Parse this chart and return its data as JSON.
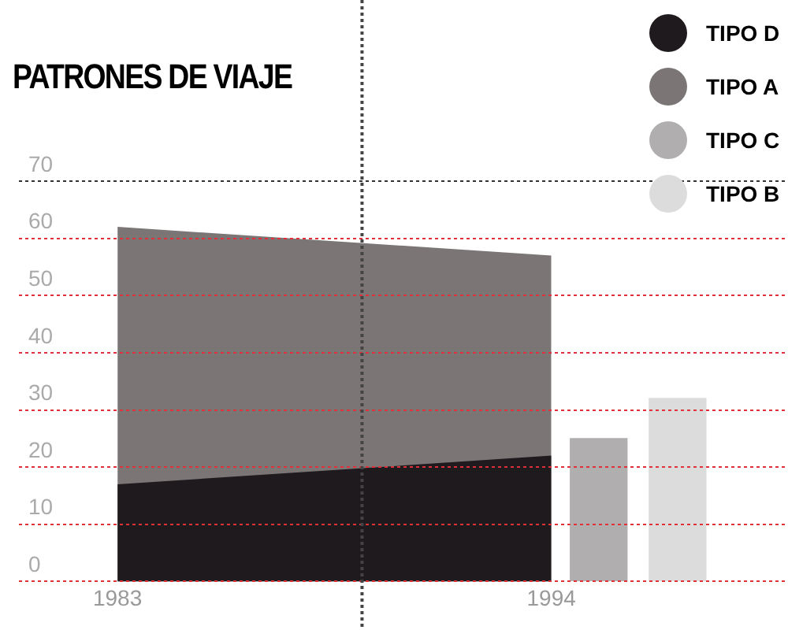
{
  "chart_data": {
    "type": "area",
    "title": "PATRONES DE VIAJE",
    "x": [
      1983,
      1994
    ],
    "xlim": [
      1980.5,
      2000
    ],
    "xticks": [
      1983,
      1994
    ],
    "ylim": [
      0,
      70
    ],
    "yticks": [
      0,
      10,
      20,
      30,
      40,
      50,
      60,
      70
    ],
    "grid": "y",
    "legend": "top right",
    "ref_lines": [
      {
        "axis": "x",
        "value": 1989.2,
        "color": "#444444",
        "line_style": "dotted"
      }
    ],
    "series": [
      {
        "name": "TIPO D",
        "color": "#1e1a1d",
        "values": [
          17,
          22
        ]
      },
      {
        "name": "TIPO A",
        "color": "#7b7675",
        "values": [
          62,
          57
        ]
      },
      {
        "name": "TIPO C",
        "color": "#b0aeaf",
        "type": "bar",
        "x": [
          1995.2
        ],
        "values": [
          25
        ]
      },
      {
        "name": "TIPO B",
        "color": "#dcdcdc",
        "type": "bar",
        "x": [
          1997.2
        ],
        "values": [
          32
        ]
      }
    ]
  }
}
